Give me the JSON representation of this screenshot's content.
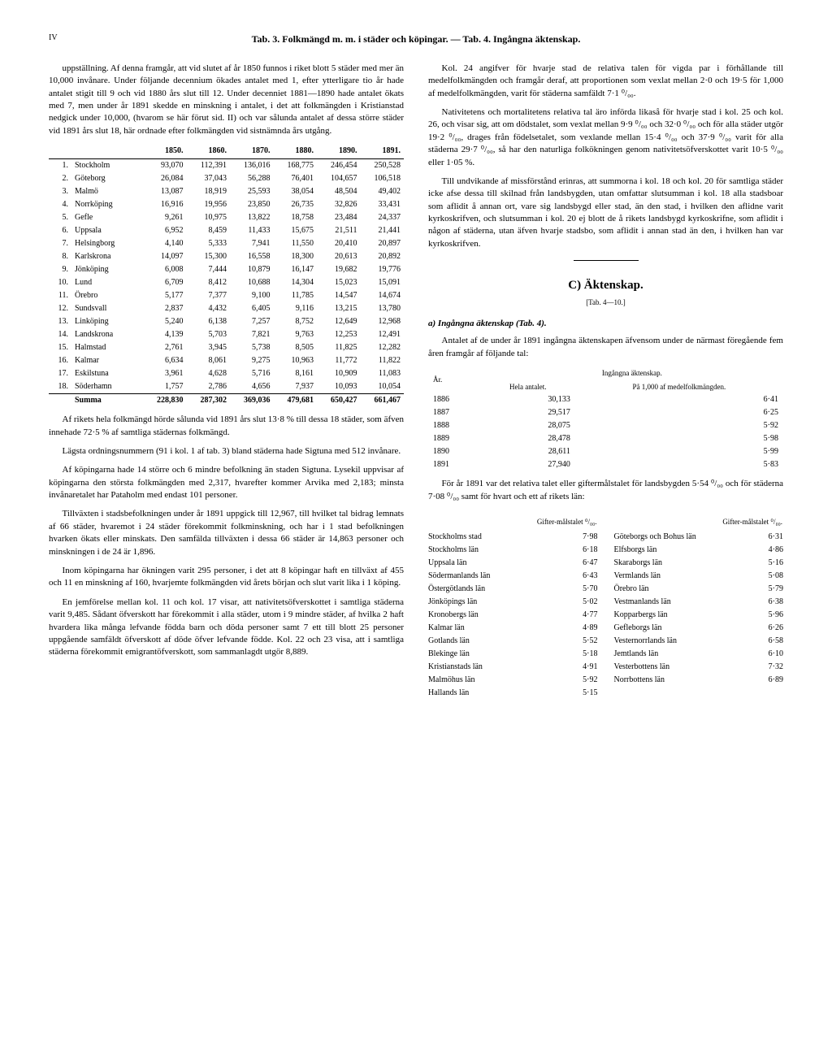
{
  "page_number": "IV",
  "header": "Tab. 3. Folkmängd m. m. i städer och köpingar. — Tab. 4. Ingångna äktenskap.",
  "left_col": {
    "p1": "uppställning. Af denna framgår, att vid slutet af år 1850 funnos i riket blott 5 städer med mer än 10,000 invånare. Under följande decennium ökades antalet med 1, efter ytterligare tio år hade antalet stigit till 9 och vid 1880 års slut till 12. Under decenniet 1881—1890 hade antalet ökats med 7, men under år 1891 skedde en minskning i antalet, i det att folkmängden i Kristianstad nedgick under 10,000, (hvarom se här förut sid. II) och var sålunda antalet af dessa större städer vid 1891 års slut 18, här ordnade efter folkmängden vid sistnämnda års utgång.",
    "city_table": {
      "headers": [
        "",
        "",
        "1850.",
        "1860.",
        "1870.",
        "1880.",
        "1890.",
        "1891."
      ],
      "rows": [
        [
          "1.",
          "Stockholm",
          "93,070",
          "112,391",
          "136,016",
          "168,775",
          "246,454",
          "250,528"
        ],
        [
          "2.",
          "Göteborg",
          "26,084",
          "37,043",
          "56,288",
          "76,401",
          "104,657",
          "106,518"
        ],
        [
          "3.",
          "Malmö",
          "13,087",
          "18,919",
          "25,593",
          "38,054",
          "48,504",
          "49,402"
        ],
        [
          "4.",
          "Norrköping",
          "16,916",
          "19,956",
          "23,850",
          "26,735",
          "32,826",
          "33,431"
        ],
        [
          "5.",
          "Gefle",
          "9,261",
          "10,975",
          "13,822",
          "18,758",
          "23,484",
          "24,337"
        ],
        [
          "6.",
          "Uppsala",
          "6,952",
          "8,459",
          "11,433",
          "15,675",
          "21,511",
          "21,441"
        ],
        [
          "7.",
          "Helsingborg",
          "4,140",
          "5,333",
          "7,941",
          "11,550",
          "20,410",
          "20,897"
        ],
        [
          "8.",
          "Karlskrona",
          "14,097",
          "15,300",
          "16,558",
          "18,300",
          "20,613",
          "20,892"
        ],
        [
          "9.",
          "Jönköping",
          "6,008",
          "7,444",
          "10,879",
          "16,147",
          "19,682",
          "19,776"
        ],
        [
          "10.",
          "Lund",
          "6,709",
          "8,412",
          "10,688",
          "14,304",
          "15,023",
          "15,091"
        ],
        [
          "11.",
          "Örebro",
          "5,177",
          "7,377",
          "9,100",
          "11,785",
          "14,547",
          "14,674"
        ],
        [
          "12.",
          "Sundsvall",
          "2,837",
          "4,432",
          "6,405",
          "9,116",
          "13,215",
          "13,780"
        ],
        [
          "13.",
          "Linköping",
          "5,240",
          "6,138",
          "7,257",
          "8,752",
          "12,649",
          "12,968"
        ],
        [
          "14.",
          "Landskrona",
          "4,139",
          "5,703",
          "7,821",
          "9,763",
          "12,253",
          "12,491"
        ],
        [
          "15.",
          "Halmstad",
          "2,761",
          "3,945",
          "5,738",
          "8,505",
          "11,825",
          "12,282"
        ],
        [
          "16.",
          "Kalmar",
          "6,634",
          "8,061",
          "9,275",
          "10,963",
          "11,772",
          "11,822"
        ],
        [
          "17.",
          "Eskilstuna",
          "3,961",
          "4,628",
          "5,716",
          "8,161",
          "10,909",
          "11,083"
        ],
        [
          "18.",
          "Söderhamn",
          "1,757",
          "2,786",
          "4,656",
          "7,937",
          "10,093",
          "10,054"
        ]
      ],
      "summa": [
        "",
        "Summa",
        "228,830",
        "287,302",
        "369,036",
        "479,681",
        "650,427",
        "661,467"
      ]
    },
    "p2": "Af rikets hela folkmängd hörde sålunda vid 1891 års slut 13·8 % till dessa 18 städer, som äfven innehade 72·5 % af samtliga städernas folkmängd.",
    "p3": "Lägsta ordningsnummern (91 i kol. 1 af tab. 3) bland städerna hade Sigtuna med 512 invånare.",
    "p4": "Af köpingarna hade 14 större och 6 mindre befolkning än staden Sigtuna. Lysekil uppvisar af köpingarna den största folkmängden med 2,317, hvarefter kommer Arvika med 2,183; minsta invånaretalet har Pataholm med endast 101 personer.",
    "p5": "Tillväxten i stadsbefolkningen under år 1891 uppgick till 12,967, till hvilket tal bidrag lemnats af 66 städer, hvaremot i 24 städer förekommit folkminskning, och har i 1 stad befolkningen hvarken ökats eller minskats. Den samfälda tillväxten i dessa 66 städer är 14,863 personer och minskningen i de 24 är 1,896.",
    "p6": "Inom köpingarna har ökningen varit 295 personer, i det att 8 köpingar haft en tillväxt af 455 och 11 en minskning af 160, hvarjemte folkmängden vid årets början och slut varit lika i 1 köping.",
    "p7": "En jemförelse mellan kol. 11 och kol. 17 visar, att nativitetsöfverskottet i samtliga städerna varit 9,485. Sådant öfverskott har förekommit i alla städer, utom i 9 mindre städer, af hvilka 2 haft hvardera lika många lefvande födda barn och döda personer samt 7 ett till blott 25 personer uppgående samfäldt öfverskott af döde öfver lefvande födde. Kol. 22 och 23 visa, att i samtliga städerna förekommit emigrantöfverskott, som sammanlagdt utgör 8,889."
  },
  "right_col": {
    "p1": "Kol. 24 angifver för hvarje stad de relativa talen för vigda par i förhållande till medelfolkmängden och framgår deraf, att proportionen som vexlat mellan 2·0 och 19·5 för 1,000 af medelfolkmängden, varit för städerna samfäldt 7·1 ⁰/₀₀.",
    "p2": "Nativitetens och mortalitetens relativa tal äro införda likaså för hvarje stad i kol. 25 och kol. 26, och visar sig, att om dödstalet, som vexlat mellan 9·9 ⁰/₀₀ och 32·0 ⁰/₀₀ och för alla städer utgör 19·2 ⁰/₀₀, drages från födelsetalet, som vexlande mellan 15·4 ⁰/₀₀ och 37·9 ⁰/₀₀ varit för alla städerna 29·7 ⁰/₀₀, så har den naturliga folkökningen genom nativitetsöfverskottet varit 10·5 ⁰/₀₀ eller 1·05 %.",
    "p3": "Till undvikande af missförstånd erinras, att summorna i kol. 18 och kol. 20 för samtliga städer icke afse dessa till skilnad från landsbygden, utan omfattar slutsumman i kol. 18 alla stadsboar som aflidit å annan ort, vare sig landsbygd eller stad, än den stad, i hvilken den aflidne varit kyrkoskrifven, och slutsumman i kol. 20 ej blott de å rikets landsbygd kyrkoskrifne, som aflidit i någon af städerna, utan äfven hvarje stadsbo, som aflidit i annan stad än den, i hvilken han var kyrkoskrifven.",
    "section_c": "C) Äktenskap.",
    "section_c_sub": "[Tab. 4—10.]",
    "subsection_a": "a) Ingångna äktenskap (Tab. 4).",
    "p4": "Antalet af de under år 1891 ingångna äktenskapen äfvensom under de närmast föregående fem åren framgår af följande tal:",
    "marriage_table": {
      "header_year": "År.",
      "header_group": "Ingångna äktenskap.",
      "header_abs": "Hela antalet.",
      "header_rel": "På 1,000 af medelfolkmängden.",
      "rows": [
        [
          "1886",
          "30,133",
          "6·41"
        ],
        [
          "1887",
          "29,517",
          "6·25"
        ],
        [
          "1888",
          "28,075",
          "5·92"
        ],
        [
          "1889",
          "28,478",
          "5·98"
        ],
        [
          "1890",
          "28,611",
          "5·99"
        ],
        [
          "1891",
          "27,940",
          "5·83"
        ]
      ]
    },
    "p5": "För år 1891 var det relativa talet eller giftermålstalet för landsbygden 5·54 ⁰/₀₀ och för städerna 7·08 ⁰/₀₀ samt för hvart och ett af rikets län:",
    "gifter_header": "Gifter-målstalet ⁰/₀₀.",
    "gifter_left": [
      [
        "Stockholms stad",
        "7·98"
      ],
      [
        "Stockholms län",
        "6·18"
      ],
      [
        "Uppsala län",
        "6·47"
      ],
      [
        "Södermanlands län",
        "6·43"
      ],
      [
        "Östergötlands län",
        "5·70"
      ],
      [
        "Jönköpings län",
        "5·02"
      ],
      [
        "Kronobergs län",
        "4·77"
      ],
      [
        "Kalmar län",
        "4·89"
      ],
      [
        "Gotlands län",
        "5·52"
      ],
      [
        "Blekinge län",
        "5·18"
      ],
      [
        "Kristianstads län",
        "4·91"
      ],
      [
        "Malmöhus län",
        "5·92"
      ],
      [
        "Hallands län",
        "5·15"
      ]
    ],
    "gifter_right": [
      [
        "Göteborgs och Bohus län",
        "6·31"
      ],
      [
        "Elfsborgs län",
        "4·86"
      ],
      [
        "Skaraborgs län",
        "5·16"
      ],
      [
        "Vermlands län",
        "5·08"
      ],
      [
        "Örebro län",
        "5·79"
      ],
      [
        "Vestmanlands län",
        "6·38"
      ],
      [
        "Kopparbergs län",
        "5·96"
      ],
      [
        "Gefleborgs län",
        "6·26"
      ],
      [
        "Vesternorrlands län",
        "6·58"
      ],
      [
        "Jemtlands län",
        "6·10"
      ],
      [
        "Vesterbottens län",
        "7·32"
      ],
      [
        "Norrbottens län",
        "6·89"
      ]
    ]
  }
}
